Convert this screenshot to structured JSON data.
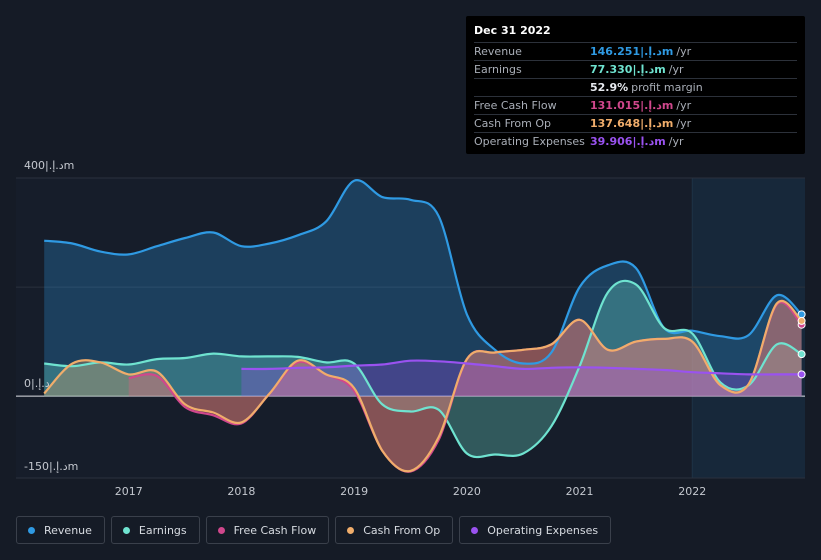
{
  "tooltip": {
    "date": "Dec 31 2022",
    "rows": [
      {
        "label": "Revenue",
        "value": "146.251|.د.إm",
        "unit": "/yr",
        "color": "#2f9ae3"
      },
      {
        "label": "Earnings",
        "value": "77.330|.د.إm",
        "unit": "/yr",
        "color": "#6fe3d0"
      },
      {
        "label": "",
        "value": "52.9%",
        "unit": "profit margin",
        "color": "#e6e9ee"
      },
      {
        "label": "Free Cash Flow",
        "value": "131.015|.د.إm",
        "unit": "/yr",
        "color": "#d0478c"
      },
      {
        "label": "Cash From Op",
        "value": "137.648|.د.إm",
        "unit": "/yr",
        "color": "#f0ad6b"
      },
      {
        "label": "Operating Expenses",
        "value": "39.906|.د.إm",
        "unit": "/yr",
        "color": "#9a52f0"
      }
    ]
  },
  "legend": [
    {
      "label": "Revenue",
      "color": "#2f9ae3"
    },
    {
      "label": "Earnings",
      "color": "#6fe3d0"
    },
    {
      "label": "Free Cash Flow",
      "color": "#d0478c"
    },
    {
      "label": "Cash From Op",
      "color": "#f0ad6b"
    },
    {
      "label": "Operating Expenses",
      "color": "#9a52f0"
    }
  ],
  "chart_data": {
    "type": "area",
    "title": "",
    "y_tick_labels": [
      "400|.د.إm",
      "0|.د.إ",
      "-150|.د.إm"
    ],
    "y_tick_values": [
      400,
      0,
      -150
    ],
    "ylim": [
      -150,
      400
    ],
    "xlim": [
      2016.2,
      2023.0
    ],
    "x_tick_labels": [
      "2017",
      "2018",
      "2019",
      "2020",
      "2021",
      "2022"
    ],
    "x_tick_values": [
      2017,
      2018,
      2019,
      2020,
      2021,
      2022
    ],
    "highlight_start": 2022.0,
    "series": [
      {
        "name": "Revenue",
        "color": "#2f9ae3",
        "x": [
          2016.25,
          2016.5,
          2016.75,
          2017.0,
          2017.25,
          2017.5,
          2017.75,
          2018.0,
          2018.25,
          2018.5,
          2018.75,
          2019.0,
          2019.25,
          2019.5,
          2019.75,
          2020.0,
          2020.25,
          2020.5,
          2020.75,
          2021.0,
          2021.25,
          2021.5,
          2021.75,
          2022.0,
          2022.25,
          2022.5,
          2022.75,
          2022.97
        ],
        "y": [
          285,
          280,
          265,
          260,
          275,
          290,
          300,
          275,
          280,
          295,
          320,
          395,
          365,
          360,
          330,
          150,
          85,
          60,
          80,
          200,
          240,
          235,
          125,
          120,
          110,
          112,
          185,
          150
        ]
      },
      {
        "name": "Earnings",
        "color": "#6fe3d0",
        "x": [
          2016.25,
          2016.5,
          2016.75,
          2017.0,
          2017.25,
          2017.5,
          2017.75,
          2018.0,
          2018.25,
          2018.5,
          2018.75,
          2019.0,
          2019.25,
          2019.5,
          2019.75,
          2020.0,
          2020.25,
          2020.5,
          2020.75,
          2021.0,
          2021.25,
          2021.5,
          2021.75,
          2022.0,
          2022.25,
          2022.5,
          2022.75,
          2022.97
        ],
        "y": [
          60,
          55,
          62,
          58,
          68,
          70,
          78,
          73,
          73,
          72,
          62,
          60,
          -15,
          -28,
          -25,
          -105,
          -107,
          -105,
          -55,
          55,
          190,
          205,
          125,
          115,
          25,
          20,
          95,
          77
        ]
      },
      {
        "name": "Free Cash Flow",
        "color": "#d0478c",
        "x": [
          2017.0,
          2017.25,
          2017.5,
          2017.75,
          2018.0,
          2018.25,
          2018.5,
          2018.75,
          2019.0,
          2019.25,
          2019.5,
          2019.75,
          2020.0,
          2020.25,
          2020.5,
          2020.75,
          2021.0,
          2021.25,
          2021.5,
          2021.75,
          2022.0,
          2022.25,
          2022.5,
          2022.75,
          2022.97
        ],
        "y": [
          33,
          37,
          -20,
          -35,
          -50,
          5,
          62,
          40,
          10,
          -100,
          -138,
          -80,
          68,
          80,
          85,
          95,
          140,
          85,
          100,
          105,
          100,
          20,
          22,
          168,
          131
        ]
      },
      {
        "name": "Cash From Op",
        "color": "#f0ad6b",
        "x": [
          2016.25,
          2016.5,
          2016.75,
          2017.0,
          2017.25,
          2017.5,
          2017.75,
          2018.0,
          2018.25,
          2018.5,
          2018.75,
          2019.0,
          2019.25,
          2019.5,
          2019.75,
          2020.0,
          2020.25,
          2020.5,
          2020.75,
          2021.0,
          2021.25,
          2021.5,
          2021.75,
          2022.0,
          2022.25,
          2022.5,
          2022.75,
          2022.97
        ],
        "y": [
          5,
          60,
          62,
          40,
          45,
          -15,
          -30,
          -48,
          5,
          65,
          40,
          15,
          -100,
          -137,
          -75,
          68,
          80,
          85,
          95,
          140,
          85,
          100,
          105,
          100,
          20,
          22,
          170,
          138
        ]
      },
      {
        "name": "Operating Expenses",
        "color": "#9a52f0",
        "x": [
          2018.0,
          2018.25,
          2018.5,
          2018.75,
          2019.0,
          2019.25,
          2019.5,
          2019.75,
          2020.0,
          2020.25,
          2020.5,
          2020.75,
          2021.0,
          2021.25,
          2021.5,
          2021.75,
          2022.0,
          2022.25,
          2022.5,
          2022.75,
          2022.97
        ],
        "y": [
          50,
          50,
          52,
          53,
          56,
          58,
          65,
          64,
          60,
          55,
          50,
          52,
          53,
          52,
          50,
          48,
          44,
          42,
          40,
          40,
          40
        ]
      }
    ]
  }
}
